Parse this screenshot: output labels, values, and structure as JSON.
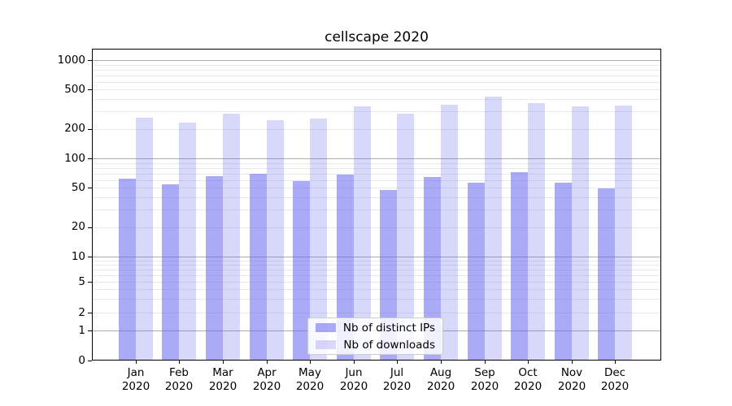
{
  "chart_data": {
    "type": "bar",
    "title": "cellscape 2020",
    "categories": [
      "Jan 2020",
      "Feb 2020",
      "Mar 2020",
      "Apr 2020",
      "May 2020",
      "Jun 2020",
      "Jul 2020",
      "Aug 2020",
      "Sep 2020",
      "Oct 2020",
      "Nov 2020",
      "Dec 2020"
    ],
    "series": [
      {
        "name": "Nb of distinct IPs",
        "color": "rgba(100,100,240,0.55)",
        "values": [
          62,
          54,
          66,
          70,
          59,
          68,
          48,
          65,
          56,
          73,
          56,
          49
        ]
      },
      {
        "name": "Nb of downloads",
        "color": "rgba(100,100,240,0.25)",
        "values": [
          260,
          232,
          286,
          244,
          255,
          340,
          286,
          350,
          425,
          366,
          337,
          347
        ]
      }
    ],
    "xlabel": "",
    "ylabel": "",
    "y_axis": {
      "scale": "symlog",
      "tick_values": [
        1000,
        500,
        200,
        100,
        50,
        20,
        10,
        5,
        2,
        1,
        0
      ],
      "ylim": [
        0,
        1280
      ]
    },
    "grid": {
      "show": true,
      "orientation": "horizontal",
      "major_values": [
        1,
        10,
        100,
        1000
      ],
      "major_color": "#ababab",
      "minor_color": "#e9e9e9"
    },
    "legend_position": "lower center (inside plot)"
  },
  "legend": {
    "items": [
      {
        "label": "Nb of distinct IPs"
      },
      {
        "label": "Nb of downloads"
      }
    ]
  }
}
